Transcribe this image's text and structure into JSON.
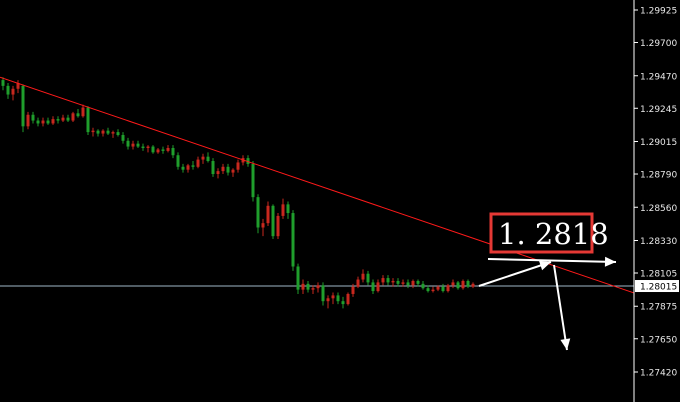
{
  "chart_data": {
    "type": "candlestick",
    "y_axis": {
      "position": "right",
      "ticks": [
        "1.29925",
        "1.29700",
        "1.29470",
        "1.29245",
        "1.29015",
        "1.28790",
        "1.28560",
        "1.28330",
        "1.28105",
        "1.27875",
        "1.27650",
        "1.27420"
      ],
      "range": [
        1.2731,
        1.3003
      ]
    },
    "current_price": {
      "label": "1.28015",
      "value": 1.28015
    },
    "trendline": {
      "color": "#ff1a1a",
      "from": {
        "bar": 0,
        "price": 1.2946
      },
      "to": {
        "bar": 120,
        "price": 1.2804
      }
    },
    "callout": {
      "text": "1. 2818",
      "border_color": "#e53935",
      "price": 1.2818
    },
    "colors": {
      "up": "#c8281e",
      "down": "#1f9e2c",
      "background": "#000000",
      "grid_line": "#9fb8c8",
      "annotation": "#ffffff"
    },
    "bar_count": 95,
    "candles": [
      [
        1.2944,
        1.2946,
        1.2937,
        1.294
      ],
      [
        1.294,
        1.2942,
        1.2931,
        1.2934
      ],
      [
        1.2934,
        1.294,
        1.293,
        1.2938
      ],
      [
        1.2938,
        1.2944,
        1.2935,
        1.2942
      ],
      [
        1.294,
        1.2941,
        1.2908,
        1.2912
      ],
      [
        1.2912,
        1.2922,
        1.291,
        1.292
      ],
      [
        1.292,
        1.2922,
        1.2914,
        1.2916
      ],
      [
        1.2916,
        1.2918,
        1.2912,
        1.2914
      ],
      [
        1.2914,
        1.2918,
        1.2912,
        1.2916
      ],
      [
        1.2916,
        1.2918,
        1.2913,
        1.2914
      ],
      [
        1.2914,
        1.2919,
        1.2913,
        1.2917
      ],
      [
        1.2917,
        1.2919,
        1.2914,
        1.2916
      ],
      [
        1.2916,
        1.292,
        1.2915,
        1.2918
      ],
      [
        1.2918,
        1.292,
        1.2915,
        1.2916
      ],
      [
        1.2916,
        1.2922,
        1.2915,
        1.2921
      ],
      [
        1.2921,
        1.2924,
        1.2918,
        1.2919
      ],
      [
        1.2919,
        1.2927,
        1.2918,
        1.2925
      ],
      [
        1.2925,
        1.2926,
        1.2906,
        1.2908
      ],
      [
        1.2908,
        1.2911,
        1.2905,
        1.2909
      ],
      [
        1.2909,
        1.291,
        1.2905,
        1.2907
      ],
      [
        1.2907,
        1.291,
        1.2905,
        1.2909
      ],
      [
        1.2909,
        1.2911,
        1.2906,
        1.2907
      ],
      [
        1.2907,
        1.2909,
        1.2904,
        1.2908
      ],
      [
        1.2908,
        1.291,
        1.2905,
        1.2906
      ],
      [
        1.2906,
        1.2908,
        1.29,
        1.2902
      ],
      [
        1.2902,
        1.2904,
        1.2896,
        1.2898
      ],
      [
        1.2898,
        1.2902,
        1.2896,
        1.29
      ],
      [
        1.29,
        1.2902,
        1.2897,
        1.2898
      ],
      [
        1.2898,
        1.29,
        1.2895,
        1.2897
      ],
      [
        1.2897,
        1.2899,
        1.2894,
        1.2898
      ],
      [
        1.2898,
        1.2899,
        1.2893,
        1.2894
      ],
      [
        1.2894,
        1.2897,
        1.2893,
        1.2896
      ],
      [
        1.2896,
        1.2898,
        1.2893,
        1.2895
      ],
      [
        1.2895,
        1.2899,
        1.2894,
        1.2897
      ],
      [
        1.2897,
        1.2899,
        1.289,
        1.2892
      ],
      [
        1.2892,
        1.2894,
        1.2882,
        1.2884
      ],
      [
        1.2884,
        1.2886,
        1.288,
        1.2882
      ],
      [
        1.2882,
        1.2886,
        1.288,
        1.2885
      ],
      [
        1.2885,
        1.2888,
        1.2882,
        1.2884
      ],
      [
        1.2884,
        1.2891,
        1.2883,
        1.2889
      ],
      [
        1.2889,
        1.2893,
        1.2886,
        1.2891
      ],
      [
        1.2891,
        1.2894,
        1.2887,
        1.2888
      ],
      [
        1.2888,
        1.289,
        1.2877,
        1.2879
      ],
      [
        1.2879,
        1.2883,
        1.2876,
        1.2881
      ],
      [
        1.2881,
        1.2886,
        1.2879,
        1.2884
      ],
      [
        1.2884,
        1.2886,
        1.2878,
        1.288
      ],
      [
        1.288,
        1.2883,
        1.2877,
        1.2882
      ],
      [
        1.2882,
        1.2889,
        1.288,
        1.2887
      ],
      [
        1.2887,
        1.2892,
        1.2885,
        1.289
      ],
      [
        1.289,
        1.2892,
        1.2884,
        1.2886
      ],
      [
        1.2886,
        1.2888,
        1.286,
        1.2863
      ],
      [
        1.2863,
        1.2865,
        1.2838,
        1.2842
      ],
      [
        1.2842,
        1.2848,
        1.2836,
        1.2845
      ],
      [
        1.2845,
        1.286,
        1.2843,
        1.2857
      ],
      [
        1.2857,
        1.2858,
        1.2834,
        1.2836
      ],
      [
        1.2836,
        1.2852,
        1.2834,
        1.285
      ],
      [
        1.285,
        1.2862,
        1.2848,
        1.2858
      ],
      [
        1.2858,
        1.286,
        1.2848,
        1.2852
      ],
      [
        1.2852,
        1.2854,
        1.2812,
        1.2815
      ],
      [
        1.2815,
        1.2817,
        1.2796,
        1.2799
      ],
      [
        1.2799,
        1.2806,
        1.2796,
        1.2803
      ],
      [
        1.2803,
        1.2805,
        1.2797,
        1.2799
      ],
      [
        1.2799,
        1.2802,
        1.2796,
        1.28
      ],
      [
        1.28,
        1.2804,
        1.2797,
        1.2802
      ],
      [
        1.2802,
        1.2804,
        1.2788,
        1.2791
      ],
      [
        1.2791,
        1.2795,
        1.2786,
        1.2793
      ],
      [
        1.2793,
        1.2797,
        1.2789,
        1.2795
      ],
      [
        1.2795,
        1.2797,
        1.2789,
        1.2791
      ],
      [
        1.2791,
        1.2794,
        1.2786,
        1.2789
      ],
      [
        1.2789,
        1.2797,
        1.2788,
        1.2796
      ],
      [
        1.2796,
        1.2803,
        1.2794,
        1.2801
      ],
      [
        1.2801,
        1.2808,
        1.28,
        1.2806
      ],
      [
        1.2806,
        1.2813,
        1.2804,
        1.281
      ],
      [
        1.281,
        1.2812,
        1.2802,
        1.2804
      ],
      [
        1.2804,
        1.2806,
        1.2796,
        1.2798
      ],
      [
        1.2798,
        1.2806,
        1.2797,
        1.2804
      ],
      [
        1.2804,
        1.2809,
        1.2802,
        1.2807
      ],
      [
        1.2807,
        1.2809,
        1.2802,
        1.2804
      ],
      [
        1.2804,
        1.2807,
        1.2801,
        1.2805
      ],
      [
        1.2805,
        1.2807,
        1.2801,
        1.2803
      ],
      [
        1.2803,
        1.2806,
        1.2801,
        1.2804
      ],
      [
        1.2804,
        1.2806,
        1.28,
        1.2802
      ],
      [
        1.2802,
        1.2806,
        1.28,
        1.2805
      ],
      [
        1.2805,
        1.2806,
        1.2801,
        1.2803
      ],
      [
        1.2803,
        1.2805,
        1.2799,
        1.28
      ],
      [
        1.28,
        1.2802,
        1.2797,
        1.2798
      ],
      [
        1.2798,
        1.2801,
        1.2797,
        1.2799
      ],
      [
        1.2799,
        1.2802,
        1.2798,
        1.2801
      ],
      [
        1.2801,
        1.2803,
        1.2797,
        1.2798
      ],
      [
        1.2798,
        1.2803,
        1.2797,
        1.2802
      ],
      [
        1.2802,
        1.2806,
        1.28,
        1.2804
      ],
      [
        1.2804,
        1.2805,
        1.2799,
        1.28
      ],
      [
        1.28,
        1.2806,
        1.2799,
        1.2805
      ],
      [
        1.2805,
        1.2806,
        1.28,
        1.2801
      ],
      [
        1.2801,
        1.2804,
        1.28,
        1.2803
      ]
    ]
  }
}
